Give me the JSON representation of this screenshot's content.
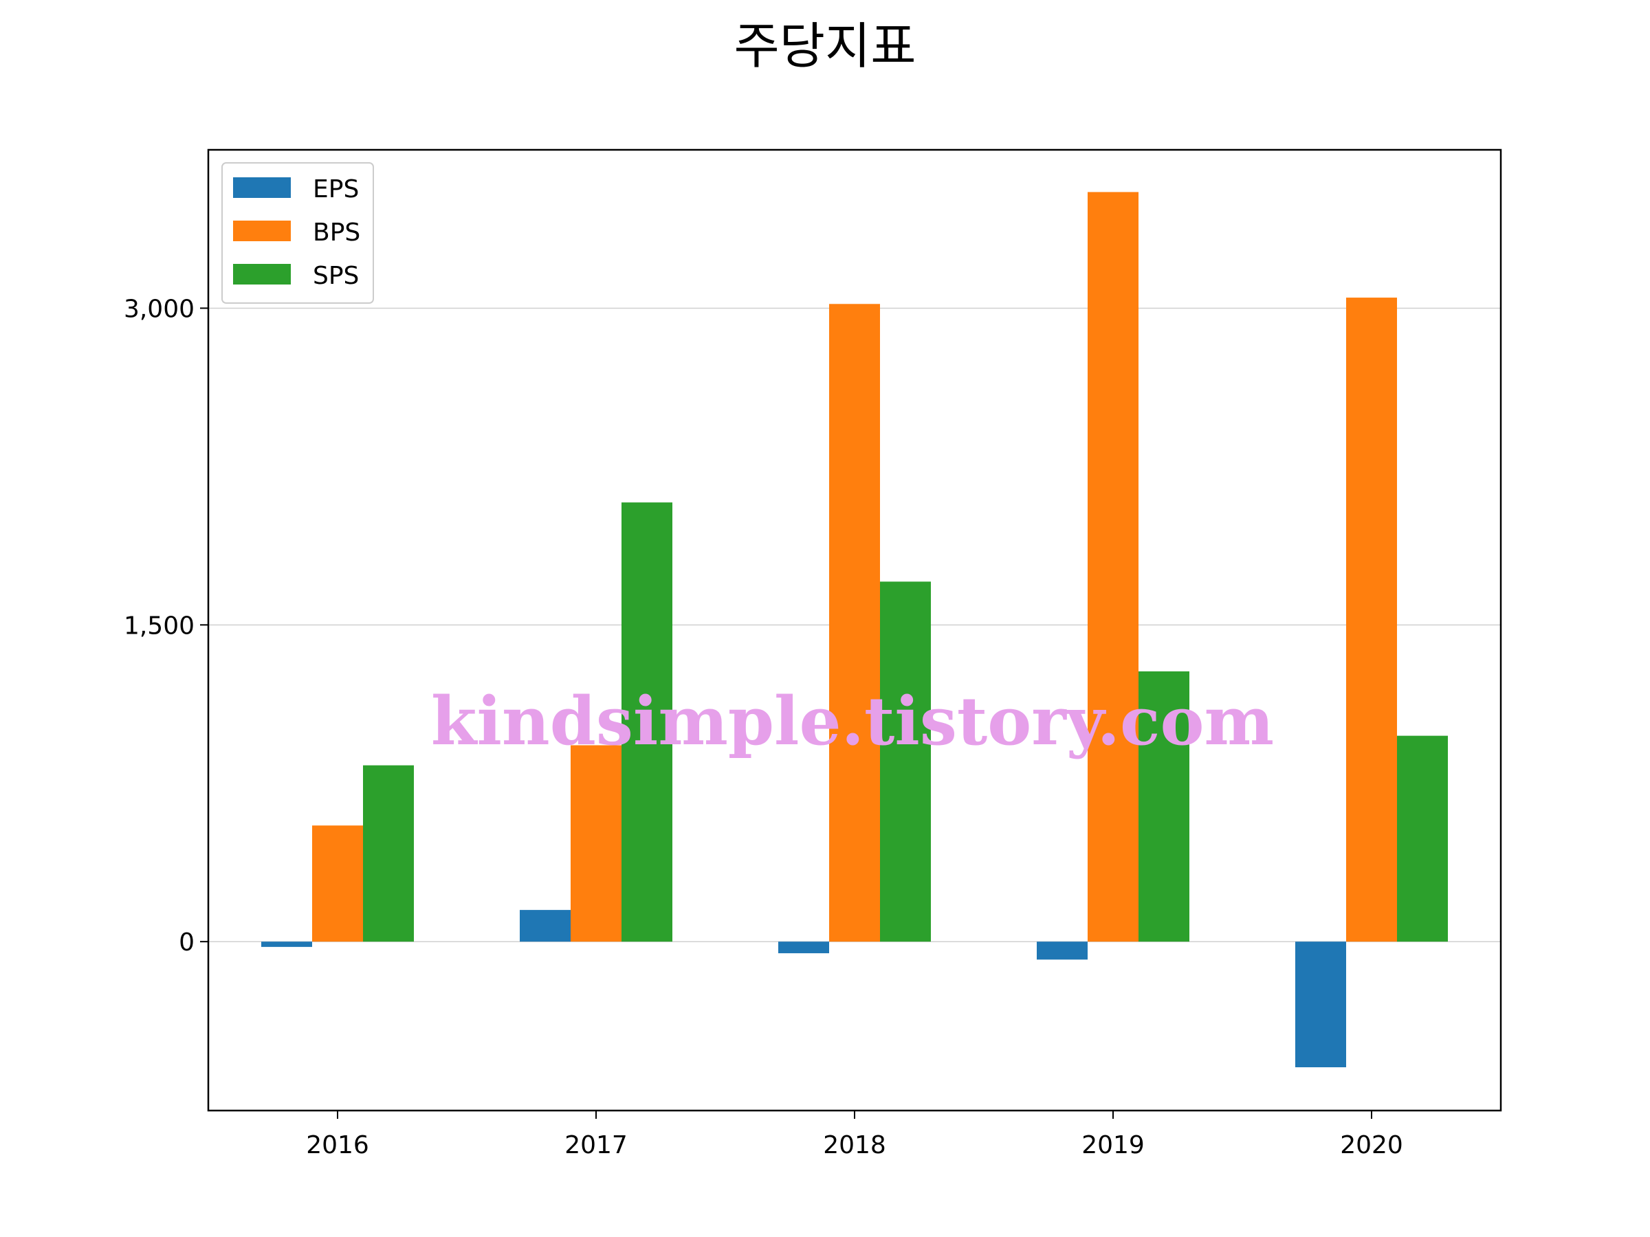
{
  "chart_data": {
    "type": "bar",
    "title": "주당지표",
    "xlabel": "",
    "ylabel": "",
    "categories": [
      "2016",
      "2017",
      "2018",
      "2019",
      "2020"
    ],
    "series": [
      {
        "name": "EPS",
        "color": "#1f77b4",
        "values": [
          -25,
          150,
          -55,
          -85,
          -595
        ]
      },
      {
        "name": "BPS",
        "color": "#ff7f0e",
        "values": [
          550,
          930,
          3020,
          3550,
          3050
        ]
      },
      {
        "name": "SPS",
        "color": "#2ca02c",
        "values": [
          835,
          2080,
          1705,
          1280,
          975
        ]
      }
    ],
    "ylim": [
      -800,
      3750
    ],
    "yticks": [
      0,
      1500,
      3000
    ],
    "ytick_labels": [
      "0",
      "1,500",
      "3,000"
    ],
    "grid": "horizontal",
    "legend_placement": "top-left",
    "watermark": "kindsimple.tistory.com"
  }
}
